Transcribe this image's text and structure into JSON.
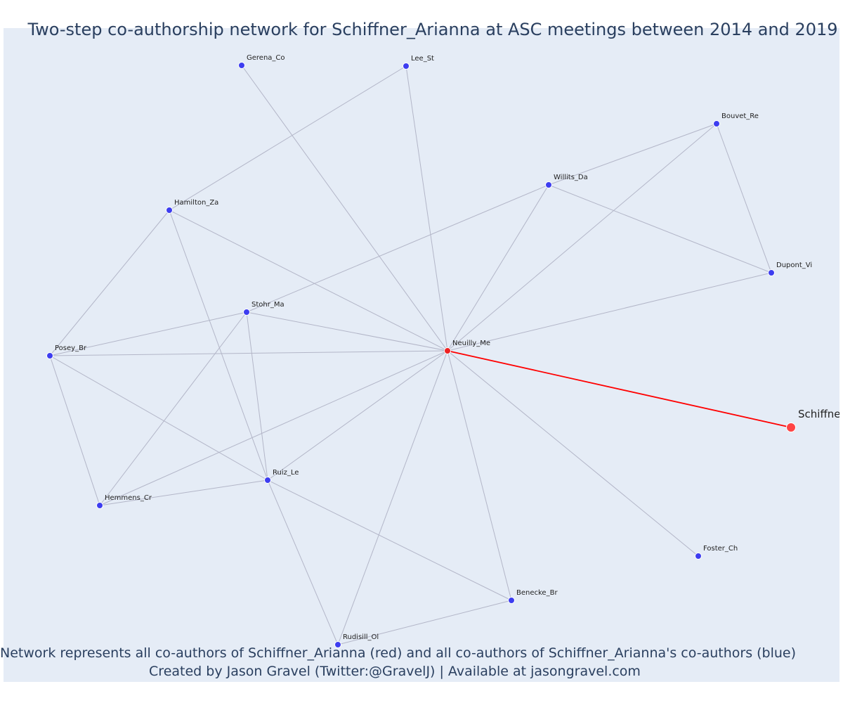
{
  "title": "Two-step co-authorship network for Schiffner_Arianna at ASC meetings between 2014 and 2019",
  "footer": {
    "line1": "Network represents all co-authors of Schiffner_Arianna (red) and all co-authors of Schiffner_Arianna's co-authors (blue)",
    "line2": "Created by Jason Gravel (Twitter:@GravelJ) | Available at jasongravel.com"
  },
  "colors": {
    "background": "#e5ecf6",
    "edge": "#b3b6c8",
    "focal_edge": "#ff0000",
    "coauthor_of_coauthor": "#3d3df0",
    "direct_coauthor": "#ee2222",
    "focal": "#ff4444"
  },
  "network": {
    "focal": "Schiffner_Arianna",
    "nodes": [
      {
        "id": "Gerena_Co",
        "label": "Gerena_Co",
        "group": "second"
      },
      {
        "id": "Lee_St",
        "label": "Lee_St",
        "group": "second"
      },
      {
        "id": "Bouvet_Re",
        "label": "Bouvet_Re",
        "group": "second"
      },
      {
        "id": "Willits_Da",
        "label": "Willits_Da",
        "group": "second"
      },
      {
        "id": "Hamilton_Za",
        "label": "Hamilton_Za",
        "group": "second"
      },
      {
        "id": "Dupont_Vi",
        "label": "Dupont_Vi",
        "group": "second"
      },
      {
        "id": "Stohr_Ma",
        "label": "Stohr_Ma",
        "group": "second"
      },
      {
        "id": "Posey_Br",
        "label": "Posey_Br",
        "group": "second"
      },
      {
        "id": "Neuilly_Me",
        "label": "Neuilly_Me",
        "group": "direct"
      },
      {
        "id": "Schiffner_Arianna",
        "label": "Schiffner",
        "group": "focal"
      },
      {
        "id": "Ruiz_Le",
        "label": "Ruiz_Le",
        "group": "second"
      },
      {
        "id": "Hemmens_Cr",
        "label": "Hemmens_Cr",
        "group": "second"
      },
      {
        "id": "Foster_Ch",
        "label": "Foster_Ch",
        "group": "second"
      },
      {
        "id": "Benecke_Br",
        "label": "Benecke_Br",
        "group": "second"
      },
      {
        "id": "Rudisill_Ol",
        "label": "Rudisill_Ol",
        "group": "second"
      }
    ],
    "edges": [
      [
        "Gerena_Co",
        "Neuilly_Me"
      ],
      [
        "Lee_St",
        "Neuilly_Me"
      ],
      [
        "Lee_St",
        "Hamilton_Za"
      ],
      [
        "Bouvet_Re",
        "Willits_Da"
      ],
      [
        "Bouvet_Re",
        "Dupont_Vi"
      ],
      [
        "Bouvet_Re",
        "Neuilly_Me"
      ],
      [
        "Willits_Da",
        "Dupont_Vi"
      ],
      [
        "Willits_Da",
        "Neuilly_Me"
      ],
      [
        "Willits_Da",
        "Stohr_Ma"
      ],
      [
        "Dupont_Vi",
        "Neuilly_Me"
      ],
      [
        "Hamilton_Za",
        "Neuilly_Me"
      ],
      [
        "Hamilton_Za",
        "Posey_Br"
      ],
      [
        "Hamilton_Za",
        "Ruiz_Le"
      ],
      [
        "Stohr_Ma",
        "Neuilly_Me"
      ],
      [
        "Stohr_Ma",
        "Posey_Br"
      ],
      [
        "Stohr_Ma",
        "Ruiz_Le"
      ],
      [
        "Stohr_Ma",
        "Hemmens_Cr"
      ],
      [
        "Posey_Br",
        "Neuilly_Me"
      ],
      [
        "Posey_Br",
        "Hemmens_Cr"
      ],
      [
        "Posey_Br",
        "Ruiz_Le"
      ],
      [
        "Hemmens_Cr",
        "Ruiz_Le"
      ],
      [
        "Hemmens_Cr",
        "Neuilly_Me"
      ],
      [
        "Ruiz_Le",
        "Neuilly_Me"
      ],
      [
        "Ruiz_Le",
        "Benecke_Br"
      ],
      [
        "Ruiz_Le",
        "Rudisill_Ol"
      ],
      [
        "Neuilly_Me",
        "Foster_Ch"
      ],
      [
        "Neuilly_Me",
        "Benecke_Br"
      ],
      [
        "Neuilly_Me",
        "Rudisill_Ol"
      ],
      [
        "Benecke_Br",
        "Rudisill_Ol"
      ],
      [
        "Neuilly_Me",
        "Schiffner_Arianna"
      ]
    ]
  }
}
